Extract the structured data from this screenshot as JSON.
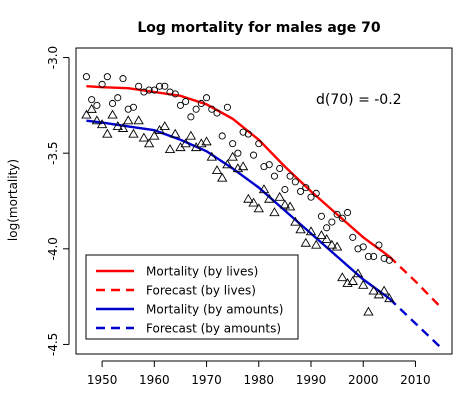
{
  "chart_data": {
    "type": "scatter",
    "title": "Log mortality for males age 70",
    "xlabel": "",
    "ylabel": "log(mortality)",
    "xlim": [
      1945,
      2017
    ],
    "ylim": [
      -4.55,
      -2.95
    ],
    "xticks": [
      1950,
      1960,
      1970,
      1980,
      1990,
      2000,
      2010
    ],
    "yticks": [
      -3.0,
      -3.5,
      -4.0,
      -4.5
    ],
    "ytick_labels": [
      "-3.0",
      "-3.5",
      "-4.0",
      "-4.5"
    ],
    "annotation": "d(70) = -0.2",
    "legend_position": "bottom-left",
    "series": [
      {
        "name": "Mortality (by lives)",
        "kind": "points",
        "marker": "circle",
        "color": "#000000",
        "x": [
          1947,
          1948,
          1949,
          1950,
          1951,
          1952,
          1953,
          1954,
          1955,
          1956,
          1957,
          1958,
          1959,
          1960,
          1961,
          1962,
          1963,
          1964,
          1965,
          1966,
          1967,
          1968,
          1969,
          1970,
          1971,
          1972,
          1973,
          1974,
          1975,
          1976,
          1977,
          1978,
          1979,
          1980,
          1981,
          1982,
          1983,
          1984,
          1985,
          1986,
          1987,
          1988,
          1989,
          1990,
          1991,
          1992,
          1993,
          1994,
          1995,
          1996,
          1997,
          1998,
          1999,
          2000,
          2001,
          2002,
          2003,
          2004,
          2005
        ],
        "y": [
          -3.1,
          -3.22,
          -3.25,
          -3.14,
          -3.1,
          -3.24,
          -3.21,
          -3.11,
          -3.27,
          -3.26,
          -3.15,
          -3.18,
          -3.17,
          -3.17,
          -3.15,
          -3.15,
          -3.18,
          -3.19,
          -3.25,
          -3.23,
          -3.31,
          -3.27,
          -3.24,
          -3.21,
          -3.27,
          -3.29,
          -3.41,
          -3.26,
          -3.45,
          -3.5,
          -3.39,
          -3.4,
          -3.51,
          -3.45,
          -3.57,
          -3.56,
          -3.62,
          -3.58,
          -3.69,
          -3.62,
          -3.65,
          -3.7,
          -3.68,
          -3.73,
          -3.71,
          -3.83,
          -3.89,
          -3.86,
          -3.82,
          -3.84,
          -3.81,
          -3.94,
          -4.0,
          -3.99,
          -4.04,
          -4.04,
          -3.98,
          -4.05,
          -4.06
        ]
      },
      {
        "name": "Mortality (by amounts)",
        "kind": "points",
        "marker": "triangle",
        "color": "#000000",
        "x": [
          1947,
          1948,
          1949,
          1950,
          1951,
          1952,
          1953,
          1954,
          1955,
          1956,
          1957,
          1958,
          1959,
          1960,
          1961,
          1962,
          1963,
          1964,
          1965,
          1966,
          1967,
          1968,
          1969,
          1970,
          1971,
          1972,
          1973,
          1974,
          1975,
          1976,
          1977,
          1978,
          1979,
          1980,
          1981,
          1982,
          1983,
          1984,
          1985,
          1986,
          1987,
          1988,
          1989,
          1990,
          1991,
          1992,
          1993,
          1994,
          1995,
          1996,
          1997,
          1998,
          1999,
          2000,
          2001,
          2002,
          2003,
          2004,
          2005
        ],
        "y": [
          -3.3,
          -3.27,
          -3.33,
          -3.35,
          -3.4,
          -3.3,
          -3.36,
          -3.37,
          -3.33,
          -3.4,
          -3.33,
          -3.42,
          -3.45,
          -3.41,
          -3.38,
          -3.36,
          -3.48,
          -3.4,
          -3.47,
          -3.45,
          -3.41,
          -3.47,
          -3.45,
          -3.44,
          -3.52,
          -3.59,
          -3.63,
          -3.56,
          -3.52,
          -3.58,
          -3.57,
          -3.74,
          -3.76,
          -3.79,
          -3.69,
          -3.74,
          -3.81,
          -3.73,
          -3.77,
          -3.78,
          -3.86,
          -3.9,
          -3.97,
          -3.91,
          -3.98,
          -3.93,
          -3.95,
          -3.98,
          -3.99,
          -4.15,
          -4.18,
          -4.17,
          -4.13,
          -4.19,
          -4.33,
          -4.22,
          -4.24,
          -4.22,
          -4.26
        ]
      },
      {
        "name": "Mortality (by lives)",
        "kind": "line",
        "style": "solid",
        "color": "#ff0000",
        "x": [
          1947,
          1950,
          1955,
          1960,
          1965,
          1970,
          1975,
          1980,
          1985,
          1990,
          1995,
          2000,
          2005
        ],
        "y": [
          -3.15,
          -3.155,
          -3.16,
          -3.18,
          -3.2,
          -3.245,
          -3.32,
          -3.43,
          -3.57,
          -3.7,
          -3.82,
          -3.94,
          -4.04
        ]
      },
      {
        "name": "Forecast (by lives)",
        "kind": "line",
        "style": "dashed",
        "color": "#ff0000",
        "x": [
          2005,
          2010,
          2015
        ],
        "y": [
          -4.04,
          -4.17,
          -4.31
        ]
      },
      {
        "name": "Mortality (by amounts)",
        "kind": "line",
        "style": "solid",
        "color": "#0000cc",
        "x": [
          1947,
          1950,
          1955,
          1960,
          1965,
          1970,
          1975,
          1980,
          1985,
          1990,
          1995,
          2000,
          2005
        ],
        "y": [
          -3.33,
          -3.34,
          -3.36,
          -3.38,
          -3.43,
          -3.49,
          -3.58,
          -3.68,
          -3.8,
          -3.92,
          -4.04,
          -4.16,
          -4.26
        ]
      },
      {
        "name": "Forecast (by amounts)",
        "kind": "line",
        "style": "dashed",
        "color": "#0000cc",
        "x": [
          2005,
          2010,
          2015
        ],
        "y": [
          -4.26,
          -4.39,
          -4.52
        ]
      }
    ],
    "legend": [
      {
        "label": "Mortality (by lives)",
        "color": "#ff0000",
        "style": "solid"
      },
      {
        "label": "Forecast (by lives)",
        "color": "#ff0000",
        "style": "dashed"
      },
      {
        "label": "Mortality (by amounts)",
        "color": "#0000cc",
        "style": "solid"
      },
      {
        "label": "Forecast (by amounts)",
        "color": "#0000cc",
        "style": "dashed"
      }
    ]
  }
}
